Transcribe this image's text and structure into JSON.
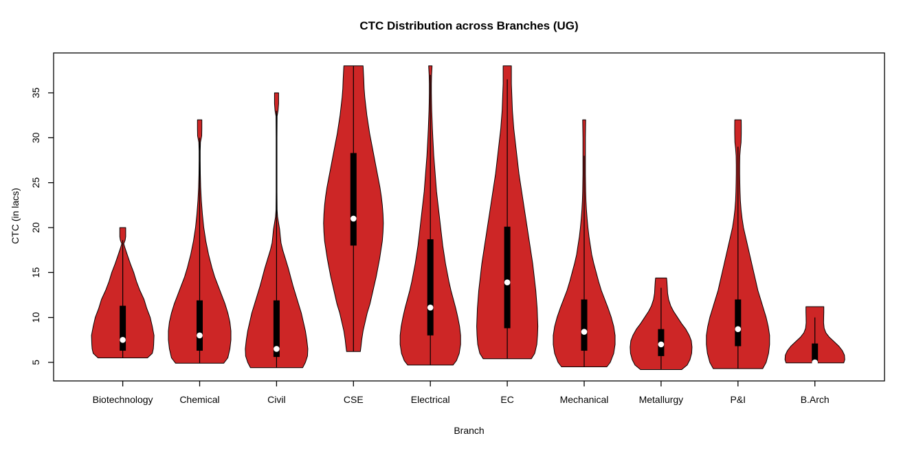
{
  "title": "CTC Distribution across Branches (UG)",
  "chart_data": {
    "type": "violin",
    "title": "CTC Distribution across Branches (UG)",
    "xlabel": "Branch",
    "ylabel": "CTC (in lacs)",
    "ylim": [
      2.9,
      39.4
    ],
    "yticks": [
      5,
      10,
      15,
      20,
      25,
      30,
      35
    ],
    "grid": false,
    "legend": "none",
    "categories": [
      "Biotechnology",
      "Chemical",
      "Civil",
      "CSE",
      "Electrical",
      "EC",
      "Mechanical",
      "Metallurgy",
      "P&I",
      "B.Arch"
    ],
    "colors": {
      "violin_fill": "#CD2626",
      "violin_outline": "#000000",
      "box": "#000000",
      "whisker": "#000000",
      "median_dot": "#FFFFFF",
      "axis": "#000000",
      "text": "#000000"
    },
    "series": [
      {
        "branch": "Biotechnology",
        "min": 5.5,
        "max": 20,
        "q1": 6.3,
        "q3": 11.3,
        "median": 7.5,
        "whisker_low": 5.5,
        "whisker_high": 18.6,
        "profile": [
          [
            5.5,
            36
          ],
          [
            6,
            43
          ],
          [
            6.5,
            44.5
          ],
          [
            7,
            45
          ],
          [
            8,
            45.5
          ],
          [
            9,
            43
          ],
          [
            10,
            40
          ],
          [
            11,
            35
          ],
          [
            12,
            31
          ],
          [
            13,
            25
          ],
          [
            14,
            20
          ],
          [
            15,
            16
          ],
          [
            16,
            11
          ],
          [
            17,
            6.5
          ],
          [
            17.8,
            3
          ],
          [
            18.2,
            1.5
          ],
          [
            18.6,
            3.5
          ],
          [
            19,
            4.3
          ],
          [
            20,
            4.3
          ]
        ]
      },
      {
        "branch": "Chemical",
        "min": 4.9,
        "max": 32,
        "q1": 6.3,
        "q3": 11.9,
        "median": 8.0,
        "whisker_low": 4.9,
        "whisker_high": 30,
        "profile": [
          [
            4.9,
            35
          ],
          [
            5.5,
            41
          ],
          [
            6.5,
            44
          ],
          [
            7.5,
            45.5
          ],
          [
            8.5,
            45.5
          ],
          [
            9.5,
            44
          ],
          [
            10.5,
            41
          ],
          [
            11.5,
            37
          ],
          [
            12.5,
            32
          ],
          [
            13.5,
            27
          ],
          [
            14.5,
            22
          ],
          [
            15.5,
            18
          ],
          [
            17,
            13
          ],
          [
            18.5,
            9
          ],
          [
            20,
            6
          ],
          [
            21.5,
            4
          ],
          [
            23,
            2.5
          ],
          [
            24.5,
            1.5
          ],
          [
            26,
            1
          ],
          [
            27.5,
            0.8
          ],
          [
            28.5,
            0.8
          ],
          [
            29.5,
            1.2
          ],
          [
            30.2,
            3
          ],
          [
            31,
            3.2
          ],
          [
            32,
            3.2
          ]
        ]
      },
      {
        "branch": "Civil",
        "min": 4.4,
        "max": 35,
        "q1": 5.6,
        "q3": 11.9,
        "median": 6.5,
        "whisker_low": 4.4,
        "whisker_high": 33,
        "profile": [
          [
            4.4,
            38
          ],
          [
            5,
            42
          ],
          [
            5.7,
            45
          ],
          [
            6.5,
            45.5
          ],
          [
            7.5,
            44
          ],
          [
            8.5,
            42
          ],
          [
            9.5,
            39
          ],
          [
            10.5,
            36
          ],
          [
            11.5,
            32
          ],
          [
            12.5,
            28
          ],
          [
            13.5,
            24
          ],
          [
            14.5,
            20.5
          ],
          [
            15.5,
            17
          ],
          [
            16.5,
            13
          ],
          [
            17.5,
            9
          ],
          [
            18.3,
            6.5
          ],
          [
            19,
            5.5
          ],
          [
            19.8,
            4.5
          ],
          [
            20.5,
            3
          ],
          [
            21.2,
            1.5
          ],
          [
            22,
            0.8
          ],
          [
            24,
            0.6
          ],
          [
            27,
            0.6
          ],
          [
            30,
            0.6
          ],
          [
            32.4,
            0.8
          ],
          [
            33,
            2.2
          ],
          [
            33.8,
            3
          ],
          [
            34.5,
            3
          ],
          [
            35,
            3
          ]
        ]
      },
      {
        "branch": "CSE",
        "min": 6.2,
        "max": 38,
        "q1": 18.0,
        "q3": 28.3,
        "median": 21.0,
        "whisker_low": 6.2,
        "whisker_high": 38,
        "profile": [
          [
            6.2,
            10
          ],
          [
            6.8,
            11
          ],
          [
            7.5,
            12
          ],
          [
            8.5,
            14
          ],
          [
            9.5,
            17
          ],
          [
            10.5,
            20
          ],
          [
            11.5,
            24
          ],
          [
            12.5,
            27
          ],
          [
            13.5,
            30
          ],
          [
            14.5,
            33
          ],
          [
            15.5,
            35.5
          ],
          [
            16.5,
            38
          ],
          [
            17.5,
            40
          ],
          [
            18.5,
            42
          ],
          [
            19.5,
            43
          ],
          [
            20.5,
            43.5
          ],
          [
            21.5,
            43
          ],
          [
            22.5,
            42
          ],
          [
            23.5,
            40.5
          ],
          [
            24.5,
            38.5
          ],
          [
            25.5,
            36
          ],
          [
            26.5,
            33.5
          ],
          [
            27.5,
            31
          ],
          [
            28.5,
            28.5
          ],
          [
            29.5,
            26
          ],
          [
            30.5,
            23.5
          ],
          [
            31.5,
            21.5
          ],
          [
            32.5,
            19.5
          ],
          [
            33.5,
            18
          ],
          [
            34.5,
            16.5
          ],
          [
            35.5,
            15.5
          ],
          [
            36.5,
            15
          ],
          [
            38,
            14
          ]
        ]
      },
      {
        "branch": "Electrical",
        "min": 4.7,
        "max": 38,
        "q1": 8.0,
        "q3": 18.7,
        "median": 11.1,
        "whisker_low": 4.7,
        "whisker_high": 37,
        "profile": [
          [
            4.7,
            33
          ],
          [
            5.2,
            38
          ],
          [
            6,
            42
          ],
          [
            7,
            44
          ],
          [
            8,
            44
          ],
          [
            9,
            42.5
          ],
          [
            10,
            40
          ],
          [
            11,
            37
          ],
          [
            12,
            33.5
          ],
          [
            13,
            30
          ],
          [
            14,
            27
          ],
          [
            15,
            24.5
          ],
          [
            16,
            22
          ],
          [
            17,
            20
          ],
          [
            18,
            18
          ],
          [
            19,
            16.5
          ],
          [
            20,
            15
          ],
          [
            21,
            13.5
          ],
          [
            22,
            12
          ],
          [
            23,
            10.5
          ],
          [
            24,
            9
          ],
          [
            25,
            8
          ],
          [
            26,
            7
          ],
          [
            27,
            6
          ],
          [
            28,
            5
          ],
          [
            29,
            4.3
          ],
          [
            30,
            3.6
          ],
          [
            31,
            3
          ],
          [
            32,
            2.5
          ],
          [
            33,
            2
          ],
          [
            34,
            1.7
          ],
          [
            35,
            1.5
          ],
          [
            36,
            1.5
          ],
          [
            37,
            1.8
          ],
          [
            38,
            2.5
          ]
        ]
      },
      {
        "branch": "EC",
        "min": 5.4,
        "max": 38,
        "q1": 8.8,
        "q3": 20.1,
        "median": 13.9,
        "whisker_low": 5.4,
        "whisker_high": 36.5,
        "profile": [
          [
            5.4,
            35
          ],
          [
            6,
            40
          ],
          [
            7,
            43
          ],
          [
            8,
            44
          ],
          [
            9,
            44.5
          ],
          [
            10,
            44
          ],
          [
            11,
            43.5
          ],
          [
            12,
            42.5
          ],
          [
            13,
            41.5
          ],
          [
            14,
            40
          ],
          [
            15,
            38.5
          ],
          [
            16,
            37
          ],
          [
            17,
            35
          ],
          [
            18,
            33
          ],
          [
            19,
            31
          ],
          [
            20,
            29
          ],
          [
            21,
            27
          ],
          [
            22,
            25
          ],
          [
            23,
            23
          ],
          [
            24,
            21
          ],
          [
            25,
            19
          ],
          [
            26,
            17
          ],
          [
            27,
            15.5
          ],
          [
            28,
            14
          ],
          [
            29,
            12.5
          ],
          [
            30,
            11
          ],
          [
            31,
            9.5
          ],
          [
            32,
            8.5
          ],
          [
            33,
            7.5
          ],
          [
            34,
            7
          ],
          [
            35,
            6.5
          ],
          [
            36,
            6
          ],
          [
            37,
            6
          ],
          [
            38,
            6
          ]
        ]
      },
      {
        "branch": "Mechanical",
        "min": 4.5,
        "max": 32,
        "q1": 6.3,
        "q3": 12.0,
        "median": 8.4,
        "whisker_low": 4.5,
        "whisker_high": 28,
        "profile": [
          [
            4.5,
            33
          ],
          [
            5,
            38
          ],
          [
            6,
            43
          ],
          [
            7,
            45
          ],
          [
            8,
            45
          ],
          [
            9,
            43
          ],
          [
            10,
            39.5
          ],
          [
            11,
            35
          ],
          [
            12,
            30
          ],
          [
            13,
            25
          ],
          [
            14,
            21
          ],
          [
            15,
            17.5
          ],
          [
            16,
            14
          ],
          [
            17,
            11
          ],
          [
            18,
            9
          ],
          [
            19,
            7
          ],
          [
            20,
            5.5
          ],
          [
            21,
            4.3
          ],
          [
            22,
            3.3
          ],
          [
            23,
            2.6
          ],
          [
            24,
            2.2
          ],
          [
            25,
            2
          ],
          [
            26,
            1.8
          ],
          [
            28,
            1.8
          ],
          [
            30,
            1.8
          ],
          [
            31,
            2
          ],
          [
            32,
            2.2
          ]
        ]
      },
      {
        "branch": "Metallurgy",
        "min": 4.2,
        "max": 14.4,
        "q1": 5.7,
        "q3": 8.7,
        "median": 7.0,
        "whisker_low": 4.2,
        "whisker_high": 13.3,
        "profile": [
          [
            4.2,
            30
          ],
          [
            4.7,
            38
          ],
          [
            5.3,
            42
          ],
          [
            6,
            44.5
          ],
          [
            6.7,
            45
          ],
          [
            7.4,
            44
          ],
          [
            8,
            41
          ],
          [
            8.7,
            36
          ],
          [
            9.3,
            30
          ],
          [
            10,
            24
          ],
          [
            10.7,
            18
          ],
          [
            11.3,
            14
          ],
          [
            12,
            11
          ],
          [
            12.7,
            9.5
          ],
          [
            13.4,
            9
          ],
          [
            14,
            8.5
          ],
          [
            14.4,
            8
          ]
        ]
      },
      {
        "branch": "P&I",
        "min": 4.3,
        "max": 32,
        "q1": 6.8,
        "q3": 12.0,
        "median": 8.7,
        "whisker_low": 4.3,
        "whisker_high": 29,
        "profile": [
          [
            4.3,
            36
          ],
          [
            5,
            41
          ],
          [
            6,
            44.5
          ],
          [
            7,
            46
          ],
          [
            8,
            46
          ],
          [
            9,
            44
          ],
          [
            10,
            41
          ],
          [
            11,
            37
          ],
          [
            12,
            33
          ],
          [
            13,
            29
          ],
          [
            14,
            26
          ],
          [
            15,
            23
          ],
          [
            16,
            20
          ],
          [
            17,
            17
          ],
          [
            18,
            14
          ],
          [
            19,
            11
          ],
          [
            20,
            8
          ],
          [
            21,
            6
          ],
          [
            22,
            4.5
          ],
          [
            23,
            3.5
          ],
          [
            24,
            3
          ],
          [
            25,
            2.7
          ],
          [
            26,
            2.5
          ],
          [
            27,
            2.5
          ],
          [
            28,
            2.7
          ],
          [
            28.8,
            3.5
          ],
          [
            29.5,
            4.5
          ],
          [
            30.5,
            4.8
          ],
          [
            31.3,
            4.8
          ],
          [
            32,
            4.7
          ]
        ]
      },
      {
        "branch": "B.Arch",
        "min": 4.95,
        "max": 11.2,
        "q1": 5.0,
        "q3": 7.1,
        "median": 5.0,
        "whisker_low": 4.95,
        "whisker_high": 10,
        "profile": [
          [
            4.95,
            42
          ],
          [
            5.3,
            43.5
          ],
          [
            5.8,
            43
          ],
          [
            6.3,
            40
          ],
          [
            6.8,
            35
          ],
          [
            7.3,
            28
          ],
          [
            7.8,
            21
          ],
          [
            8.3,
            16
          ],
          [
            8.8,
            13.5
          ],
          [
            9.4,
            12.7
          ],
          [
            10,
            12.8
          ],
          [
            10.6,
            13
          ],
          [
            11.2,
            13
          ]
        ]
      }
    ]
  }
}
